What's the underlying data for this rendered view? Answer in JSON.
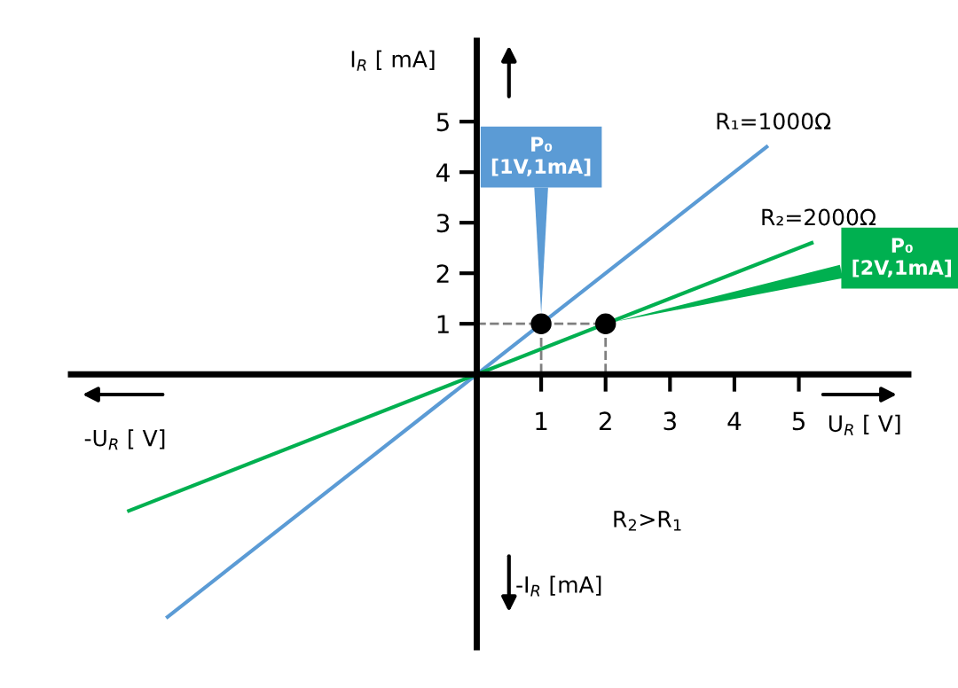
{
  "chart_data": {
    "type": "line",
    "xlabel": "U$_{R}$ [ V]",
    "ylabel": "I$_{R}$ [ mA]",
    "xlim": [
      -6.3,
      6.7
    ],
    "ylim": [
      -5.4,
      6.6
    ],
    "xticks": [
      1,
      2,
      3,
      4,
      5
    ],
    "yticks": [
      1,
      2,
      3,
      4,
      5
    ],
    "grid": false,
    "legend": false,
    "series": [
      {
        "name": "R₁=1000Ω",
        "color": "#5b9bd5",
        "x": [
          -4.8,
          4.5
        ],
        "values": [
          -4.8,
          4.5
        ]
      },
      {
        "name": "R₂=2000Ω",
        "color": "#00b050",
        "x": [
          -5.4,
          5.2
        ],
        "values": [
          -2.7,
          2.6
        ]
      },
      {
        "type": "line",
        "line_style": "dashed",
        "color": "#7f7f7f",
        "x": [
          0,
          1,
          1
        ],
        "values": [
          1,
          1,
          0
        ]
      },
      {
        "type": "line",
        "line_style": "dashed",
        "color": "#7f7f7f",
        "x": [
          1,
          2,
          2
        ],
        "values": [
          1,
          1,
          0
        ]
      },
      {
        "type": "scatter",
        "marker": "circle",
        "color": "#000000",
        "x": [
          1,
          2
        ],
        "values": [
          1,
          1
        ]
      }
    ],
    "annotations": [
      {
        "text": "P₀\n[1V,1mA]",
        "x": 1,
        "y": 1
      },
      {
        "text": "P₀\n[2V,1mA]",
        "x": 2,
        "y": 1
      },
      "R$_{2}$>R$_{1}$",
      "-U$_{R}$ [ V]",
      "-I$_{R}$ [mA]"
    ]
  }
}
